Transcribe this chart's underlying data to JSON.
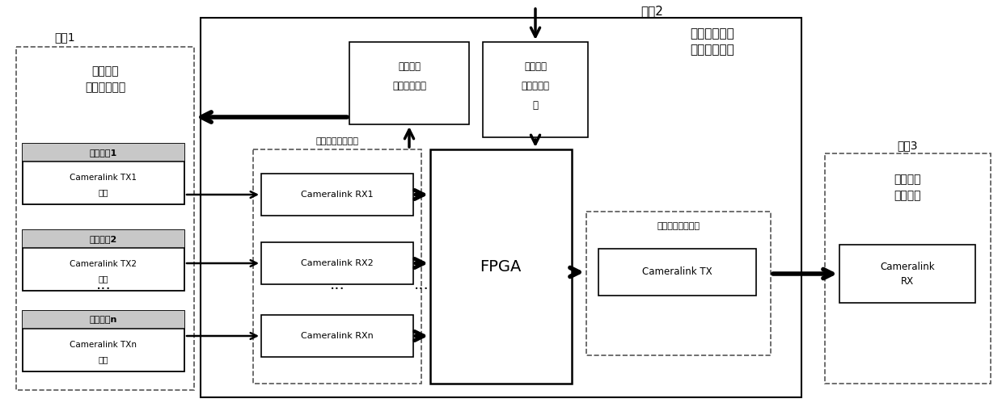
{
  "bg_color": "#ffffff",
  "fig_width": 12.39,
  "fig_height": 5.04,
  "module1_label": "模套1",
  "module1_sublabel1": "外部多路",
  "module1_sublabel2": "视频输出单元",
  "module2_label": "模套2",
  "module2_sublabel1": "多路同步视频",
  "module2_sublabel2": "无缝切换系统",
  "module3_label": "模套3",
  "module3_sublabel1": "单路视频",
  "module3_sublabel2": "输入单元",
  "video_input_label": "视频输入接口单元",
  "video_output_label": "视频输出接口单元",
  "cam1_label": "摄像装置1",
  "cam1_sub1": "Cameralink TX1",
  "cam1_sub2": "接口",
  "cam2_label": "摄像装置2",
  "cam2_sub1": "Cameralink TX2",
  "cam2_sub2": "接口",
  "camn_label": "摄像装置n",
  "camn_sub1": "Cameralink TXn",
  "camn_sub2": "接口",
  "rx1_label": "Cameralink RX1",
  "rx2_label": "Cameralink RX2",
  "rxn_label": "Cameralink RXn",
  "sync_label1": "同步脉冲",
  "sync_label2": "输出接口单元",
  "switch_label1": "切换指令",
  "switch_label2": "接收接口单",
  "switch_label3": "元",
  "fpga_label": "FPGA",
  "camlink_tx_label": "Cameralink TX",
  "camlink_rx_label1": "Cameralink",
  "camlink_rx_label2": "RX"
}
